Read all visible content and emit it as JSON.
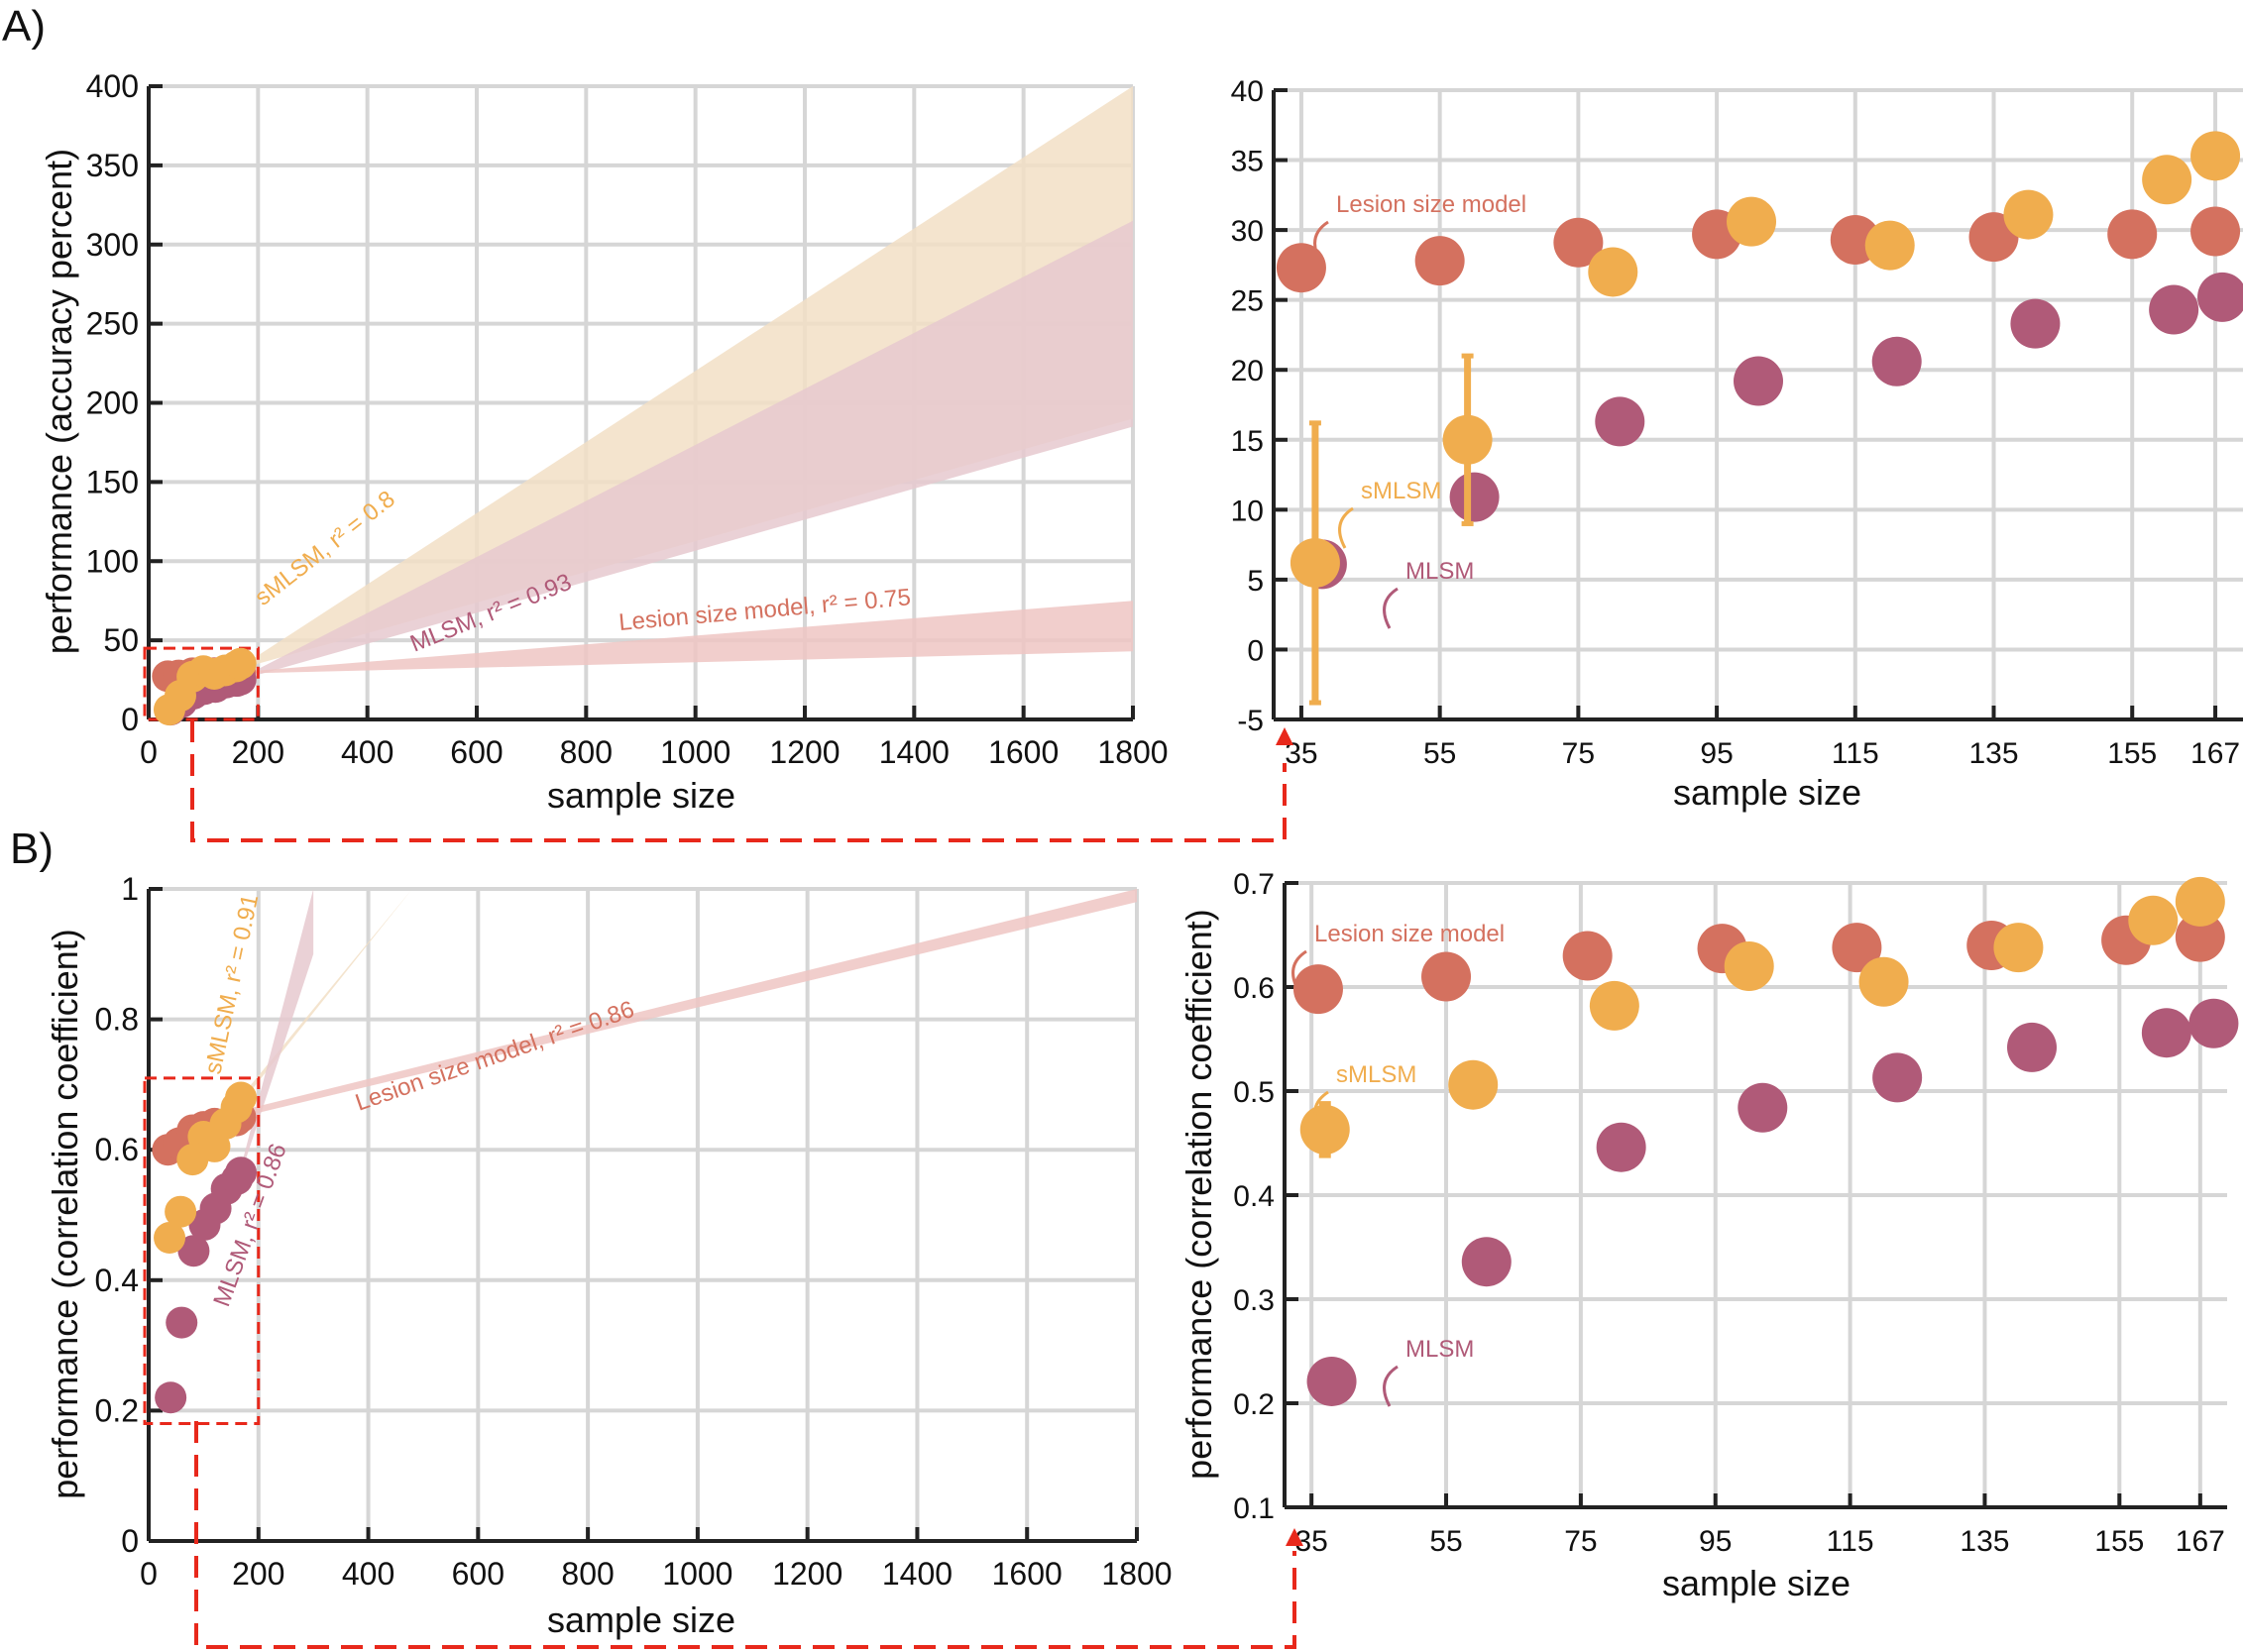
{
  "panel_labels": [
    "A)",
    "B)"
  ],
  "colors": {
    "lesion": "#d4715f",
    "smlsm": "#f0ad4e",
    "mlsm": "#b05a78",
    "band_lesion": "#eec6c3",
    "band_smlsm": "#f2dfc6",
    "band_mlsm": "#e6c9cf",
    "zoom": "#e8281b",
    "grid": "#d6d6d6"
  },
  "chart_data": [
    {
      "id": "A-full",
      "type": "scatter",
      "xlabel": "sample size",
      "ylabel": "performance (accuracy percent)",
      "xlim": [
        0,
        1800
      ],
      "ylim": [
        0,
        400
      ],
      "xticks": [
        0,
        200,
        400,
        600,
        800,
        1000,
        1200,
        1400,
        1600,
        1800
      ],
      "yticks": [
        0,
        50,
        100,
        150,
        200,
        250,
        300,
        350,
        400
      ],
      "grid": true,
      "annotations": [
        {
          "text": "sMLSM, r² = 0.8",
          "series": "sMLSM"
        },
        {
          "text": "MLSM, r² = 0.93",
          "series": "MLSM"
        },
        {
          "text": "Lesion size model, r² = 0.75",
          "series": "Lesion size model"
        }
      ],
      "bands": [
        {
          "series": "sMLSM",
          "x": [
            167,
            1800
          ],
          "lower": [
            32,
            190
          ],
          "upper": [
            33,
            400
          ]
        },
        {
          "series": "MLSM",
          "x": [
            167,
            1800
          ],
          "lower": [
            25,
            185
          ],
          "upper": [
            26,
            315
          ]
        },
        {
          "series": "Lesion size model",
          "x": [
            167,
            1800
          ],
          "lower": [
            29,
            43
          ],
          "upper": [
            30,
            75
          ]
        }
      ],
      "zoom_box": {
        "x": [
          0,
          200
        ],
        "y": [
          0,
          45
        ]
      },
      "series": [
        {
          "name": "Lesion size model",
          "x": [
            35,
            55,
            80,
            100,
            120,
            140,
            160,
            167
          ],
          "y": [
            27.3,
            27.8,
            29.2,
            29.7,
            29.3,
            29.5,
            29.7,
            29.9
          ]
        },
        {
          "name": "MLSM",
          "x": [
            40,
            60,
            82,
            102,
            122,
            142,
            161,
            168
          ],
          "y": [
            6.2,
            10.9,
            16.3,
            19.2,
            20.5,
            23.3,
            24.3,
            25.2
          ]
        },
        {
          "name": "sMLSM",
          "x": [
            38,
            58,
            80,
            100,
            120,
            140,
            160,
            168
          ],
          "y": [
            6.2,
            15.0,
            27.0,
            30.5,
            28.8,
            31.0,
            33.5,
            35.2
          ]
        }
      ]
    },
    {
      "id": "A-zoom",
      "type": "scatter",
      "xlabel": "sample size",
      "ylabel": "",
      "xlim": [
        31,
        171
      ],
      "ylim": [
        -5,
        40
      ],
      "xticks": [
        35,
        55,
        75,
        95,
        115,
        135,
        155,
        167
      ],
      "yticks": [
        -5,
        0,
        5,
        10,
        15,
        20,
        25,
        30,
        35,
        40
      ],
      "grid": true,
      "annotations": [
        {
          "text": "Lesion size model",
          "series": "Lesion size model"
        },
        {
          "text": "sMLSM",
          "series": "sMLSM"
        },
        {
          "text": "MLSM",
          "series": "MLSM"
        }
      ],
      "series": [
        {
          "name": "Lesion size model",
          "x": [
            35,
            55,
            75,
            95,
            115,
            135,
            155,
            167
          ],
          "y": [
            27.3,
            27.8,
            29.1,
            29.7,
            29.3,
            29.5,
            29.7,
            29.9
          ]
        },
        {
          "name": "MLSM",
          "x": [
            38,
            60,
            81,
            101,
            121,
            141,
            161,
            168
          ],
          "y": [
            6.1,
            10.9,
            16.3,
            19.2,
            20.6,
            23.3,
            24.3,
            25.2
          ]
        },
        {
          "name": "sMLSM",
          "x": [
            37,
            59,
            80,
            100,
            120,
            140,
            160,
            167
          ],
          "y": [
            6.2,
            15.0,
            27.0,
            30.6,
            28.9,
            31.1,
            33.6,
            35.3
          ],
          "err": [
            10,
            6,
            0,
            0,
            0,
            0,
            0,
            0
          ]
        }
      ]
    },
    {
      "id": "B-full",
      "type": "scatter",
      "xlabel": "sample size",
      "ylabel": "performance (correlation coefficient)",
      "xlim": [
        0,
        1800
      ],
      "ylim": [
        0,
        1
      ],
      "xticks": [
        0,
        200,
        400,
        600,
        800,
        1000,
        1200,
        1400,
        1600,
        1800
      ],
      "yticks": [
        0,
        0.2,
        0.4,
        0.6,
        0.8,
        1
      ],
      "grid": true,
      "annotations": [
        {
          "text": "sMLSM, r² = 0.91",
          "series": "sMLSM"
        },
        {
          "text": "Lesion size model, r² = 0.86",
          "series": "Lesion size model"
        },
        {
          "text": "MLSM, r² = 0.86",
          "series": "MLSM"
        }
      ],
      "bands": [
        {
          "series": "sMLSM",
          "x": [
            167,
            480
          ],
          "lower": [
            0.67,
            1.0
          ],
          "upper": [
            0.68,
            1.0
          ]
        },
        {
          "series": "MLSM",
          "x": [
            167,
            300
          ],
          "lower": [
            0.56,
            0.9
          ],
          "upper": [
            0.57,
            1.0
          ]
        },
        {
          "series": "Lesion size model",
          "x": [
            167,
            1800
          ],
          "lower": [
            0.65,
            0.98
          ],
          "upper": [
            0.66,
            1.0
          ]
        }
      ],
      "zoom_box": {
        "x": [
          0,
          200
        ],
        "y": [
          0.18,
          0.71
        ]
      },
      "series": [
        {
          "name": "Lesion size model",
          "x": [
            35,
            55,
            80,
            100,
            120,
            140,
            160,
            167
          ],
          "y": [
            0.6,
            0.61,
            0.63,
            0.635,
            0.64,
            0.64,
            0.645,
            0.65
          ]
        },
        {
          "name": "MLSM",
          "x": [
            40,
            60,
            82,
            102,
            122,
            142,
            161,
            168
          ],
          "y": [
            0.22,
            0.335,
            0.445,
            0.485,
            0.51,
            0.54,
            0.555,
            0.565
          ]
        },
        {
          "name": "sMLSM",
          "x": [
            38,
            58,
            80,
            100,
            120,
            140,
            160,
            168
          ],
          "y": [
            0.465,
            0.505,
            0.585,
            0.62,
            0.605,
            0.64,
            0.665,
            0.68
          ]
        }
      ]
    },
    {
      "id": "B-zoom",
      "type": "scatter",
      "xlabel": "sample size",
      "ylabel": "performance (correlation coefficient)",
      "xlim": [
        31,
        171
      ],
      "ylim": [
        0.1,
        0.7
      ],
      "xticks": [
        35,
        55,
        75,
        95,
        115,
        135,
        155,
        167
      ],
      "yticks": [
        0.1,
        0.2,
        0.3,
        0.4,
        0.5,
        0.6,
        0.7
      ],
      "grid": true,
      "annotations": [
        {
          "text": "Lesion size model",
          "series": "Lesion size model"
        },
        {
          "text": "sMLSM",
          "series": "sMLSM"
        },
        {
          "text": "MLSM",
          "series": "MLSM"
        }
      ],
      "series": [
        {
          "name": "Lesion size model",
          "x": [
            36,
            55,
            76,
            96,
            116,
            136,
            156,
            167
          ],
          "y": [
            0.598,
            0.61,
            0.63,
            0.637,
            0.638,
            0.64,
            0.645,
            0.648
          ]
        },
        {
          "name": "MLSM",
          "x": [
            38,
            61,
            81,
            102,
            122,
            142,
            162,
            169
          ],
          "y": [
            0.221,
            0.336,
            0.446,
            0.484,
            0.513,
            0.542,
            0.556,
            0.565
          ]
        },
        {
          "name": "sMLSM",
          "x": [
            37,
            59,
            80,
            100,
            120,
            140,
            160,
            167
          ],
          "y": [
            0.463,
            0.506,
            0.582,
            0.62,
            0.605,
            0.638,
            0.664,
            0.682
          ],
          "err": [
            0.025,
            0,
            0,
            0,
            0,
            0,
            0,
            0
          ]
        }
      ]
    }
  ]
}
